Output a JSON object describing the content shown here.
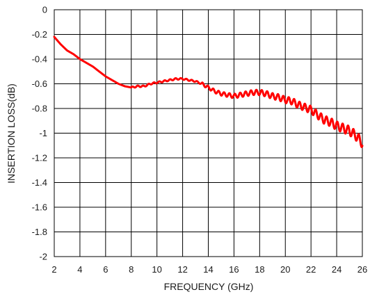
{
  "chart_data": {
    "type": "line",
    "title": "",
    "xlabel": "FREQUENCY (GHz)",
    "ylabel": "INSERTION LOSS(dB)",
    "xlim": [
      2,
      26
    ],
    "ylim": [
      -2,
      0
    ],
    "xticks": [
      "2",
      "4",
      "6",
      "8",
      "10",
      "12",
      "14",
      "16",
      "18",
      "20",
      "22",
      "24",
      "26"
    ],
    "yticks": [
      "0",
      "-0.2",
      "-0.4",
      "-0.6",
      "-0.8",
      "-1",
      "-1.2",
      "-1.4",
      "-1.6",
      "-1.8",
      "-2"
    ],
    "grid": true,
    "series": [
      {
        "color": "#ff0000",
        "x": [
          2,
          2.5,
          3,
          3.5,
          4,
          4.5,
          5,
          5.5,
          6,
          6.5,
          7,
          7.5,
          8,
          8.5,
          9,
          9.5,
          10,
          10.5,
          11,
          11.5,
          12,
          12.5,
          13,
          13.5,
          14,
          14.5,
          15,
          15.5,
          16,
          16.5,
          17,
          17.5,
          18,
          18.5,
          19,
          19.5,
          20,
          20.5,
          21,
          21.5,
          22,
          22.5,
          23,
          23.5,
          24,
          24.5,
          25,
          25.5,
          26
        ],
        "y": [
          -0.22,
          -0.28,
          -0.33,
          -0.36,
          -0.4,
          -0.43,
          -0.46,
          -0.5,
          -0.54,
          -0.57,
          -0.6,
          -0.62,
          -0.63,
          -0.62,
          -0.62,
          -0.6,
          -0.59,
          -0.58,
          -0.57,
          -0.56,
          -0.56,
          -0.57,
          -0.58,
          -0.6,
          -0.63,
          -0.66,
          -0.68,
          -0.69,
          -0.7,
          -0.69,
          -0.68,
          -0.67,
          -0.67,
          -0.68,
          -0.7,
          -0.71,
          -0.73,
          -0.74,
          -0.77,
          -0.79,
          -0.81,
          -0.85,
          -0.89,
          -0.91,
          -0.94,
          -0.96,
          -0.98,
          -1.02,
          -1.08
        ]
      }
    ]
  }
}
